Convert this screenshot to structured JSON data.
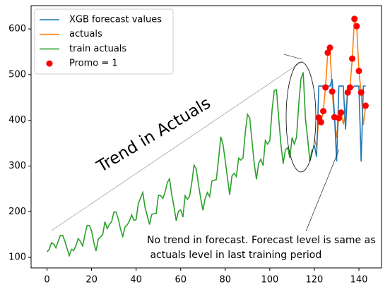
{
  "chart_data": {
    "type": "line",
    "annotations": [
      "Trend in Actuals",
      "No trend in forecast. Forecast level is same as",
      " actuals level in last training period"
    ],
    "series": [
      {
        "name": "XGB forecast values",
        "color": "#1f77b4",
        "x": [
          120,
          121,
          122,
          123,
          124,
          125,
          126,
          127,
          128,
          129,
          130,
          131,
          132,
          133,
          134,
          135,
          136,
          137,
          138,
          139,
          140,
          141,
          142,
          143
        ],
        "values": [
          345,
          320,
          475,
          475,
          475,
          475,
          475,
          475,
          490,
          415,
          310,
          475,
          475,
          475,
          380,
          475,
          475,
          470,
          475,
          475,
          475,
          310,
          475,
          475
        ]
      },
      {
        "name": "actuals",
        "color": "#ff7f0e",
        "x": [
          120,
          121,
          122,
          123,
          124,
          125,
          126,
          127,
          128,
          129,
          130,
          131,
          132,
          133,
          134,
          135,
          136,
          137,
          138,
          139,
          140,
          141,
          142,
          143
        ],
        "values": [
          360,
          342,
          406,
          396,
          420,
          472,
          548,
          559,
          463,
          407,
          362,
          405,
          417,
          391,
          419,
          461,
          472,
          535,
          622,
          606,
          508,
          461,
          390,
          432
        ]
      },
      {
        "name": "train actuals",
        "color": "#2ca02c",
        "x": [
          0,
          1,
          2,
          3,
          4,
          5,
          6,
          7,
          8,
          9,
          10,
          11,
          12,
          13,
          14,
          15,
          16,
          17,
          18,
          19,
          20,
          21,
          22,
          23,
          24,
          25,
          26,
          27,
          28,
          29,
          30,
          31,
          32,
          33,
          34,
          35,
          36,
          37,
          38,
          39,
          40,
          41,
          42,
          43,
          44,
          45,
          46,
          47,
          48,
          49,
          50,
          51,
          52,
          53,
          54,
          55,
          56,
          57,
          58,
          59,
          60,
          61,
          62,
          63,
          64,
          65,
          66,
          67,
          68,
          69,
          70,
          71,
          72,
          73,
          74,
          75,
          76,
          77,
          78,
          79,
          80,
          81,
          82,
          83,
          84,
          85,
          86,
          87,
          88,
          89,
          90,
          91,
          92,
          93,
          94,
          95,
          96,
          97,
          98,
          99,
          100,
          101,
          102,
          103,
          104,
          105,
          106,
          107,
          108,
          109,
          110,
          111,
          112,
          113,
          114,
          115,
          116,
          117,
          118,
          119
        ],
        "values": [
          112,
          118,
          132,
          129,
          121,
          135,
          148,
          148,
          136,
          119,
          104,
          118,
          115,
          126,
          141,
          135,
          125,
          149,
          170,
          170,
          158,
          133,
          114,
          140,
          145,
          150,
          178,
          163,
          172,
          178,
          199,
          199,
          184,
          162,
          146,
          166,
          171,
          180,
          193,
          181,
          183,
          218,
          230,
          242,
          209,
          191,
          172,
          194,
          196,
          196,
          236,
          235,
          229,
          243,
          264,
          272,
          237,
          211,
          180,
          201,
          204,
          188,
          235,
          227,
          234,
          264,
          302,
          293,
          259,
          229,
          203,
          229,
          242,
          233,
          267,
          269,
          270,
          315,
          364,
          347,
          312,
          274,
          237,
          278,
          284,
          277,
          317,
          313,
          318,
          374,
          413,
          405,
          355,
          306,
          271,
          306,
          315,
          301,
          356,
          348,
          355,
          422,
          465,
          467,
          404,
          347,
          305,
          336,
          340,
          318,
          362,
          348,
          363,
          435,
          491,
          505,
          404,
          359,
          310,
          337
        ]
      },
      {
        "name": "Promo = 1",
        "color": "#ff0000",
        "marker": "o",
        "x": [
          122,
          123,
          124,
          125,
          126,
          127,
          128,
          129,
          131,
          132,
          135,
          136,
          137,
          138,
          139,
          140,
          141,
          143
        ],
        "values": [
          406,
          396,
          420,
          472,
          548,
          559,
          463,
          407,
          405,
          417,
          461,
          472,
          535,
          622,
          606,
          508,
          461,
          432
        ]
      }
    ],
    "xlim": [
      -7.15,
      150.15
    ],
    "ylim": [
      77,
      651
    ],
    "xticks": [
      0,
      20,
      40,
      60,
      80,
      100,
      120,
      140
    ],
    "yticks": [
      100,
      200,
      300,
      400,
      500,
      600
    ],
    "legend": "upper left"
  }
}
